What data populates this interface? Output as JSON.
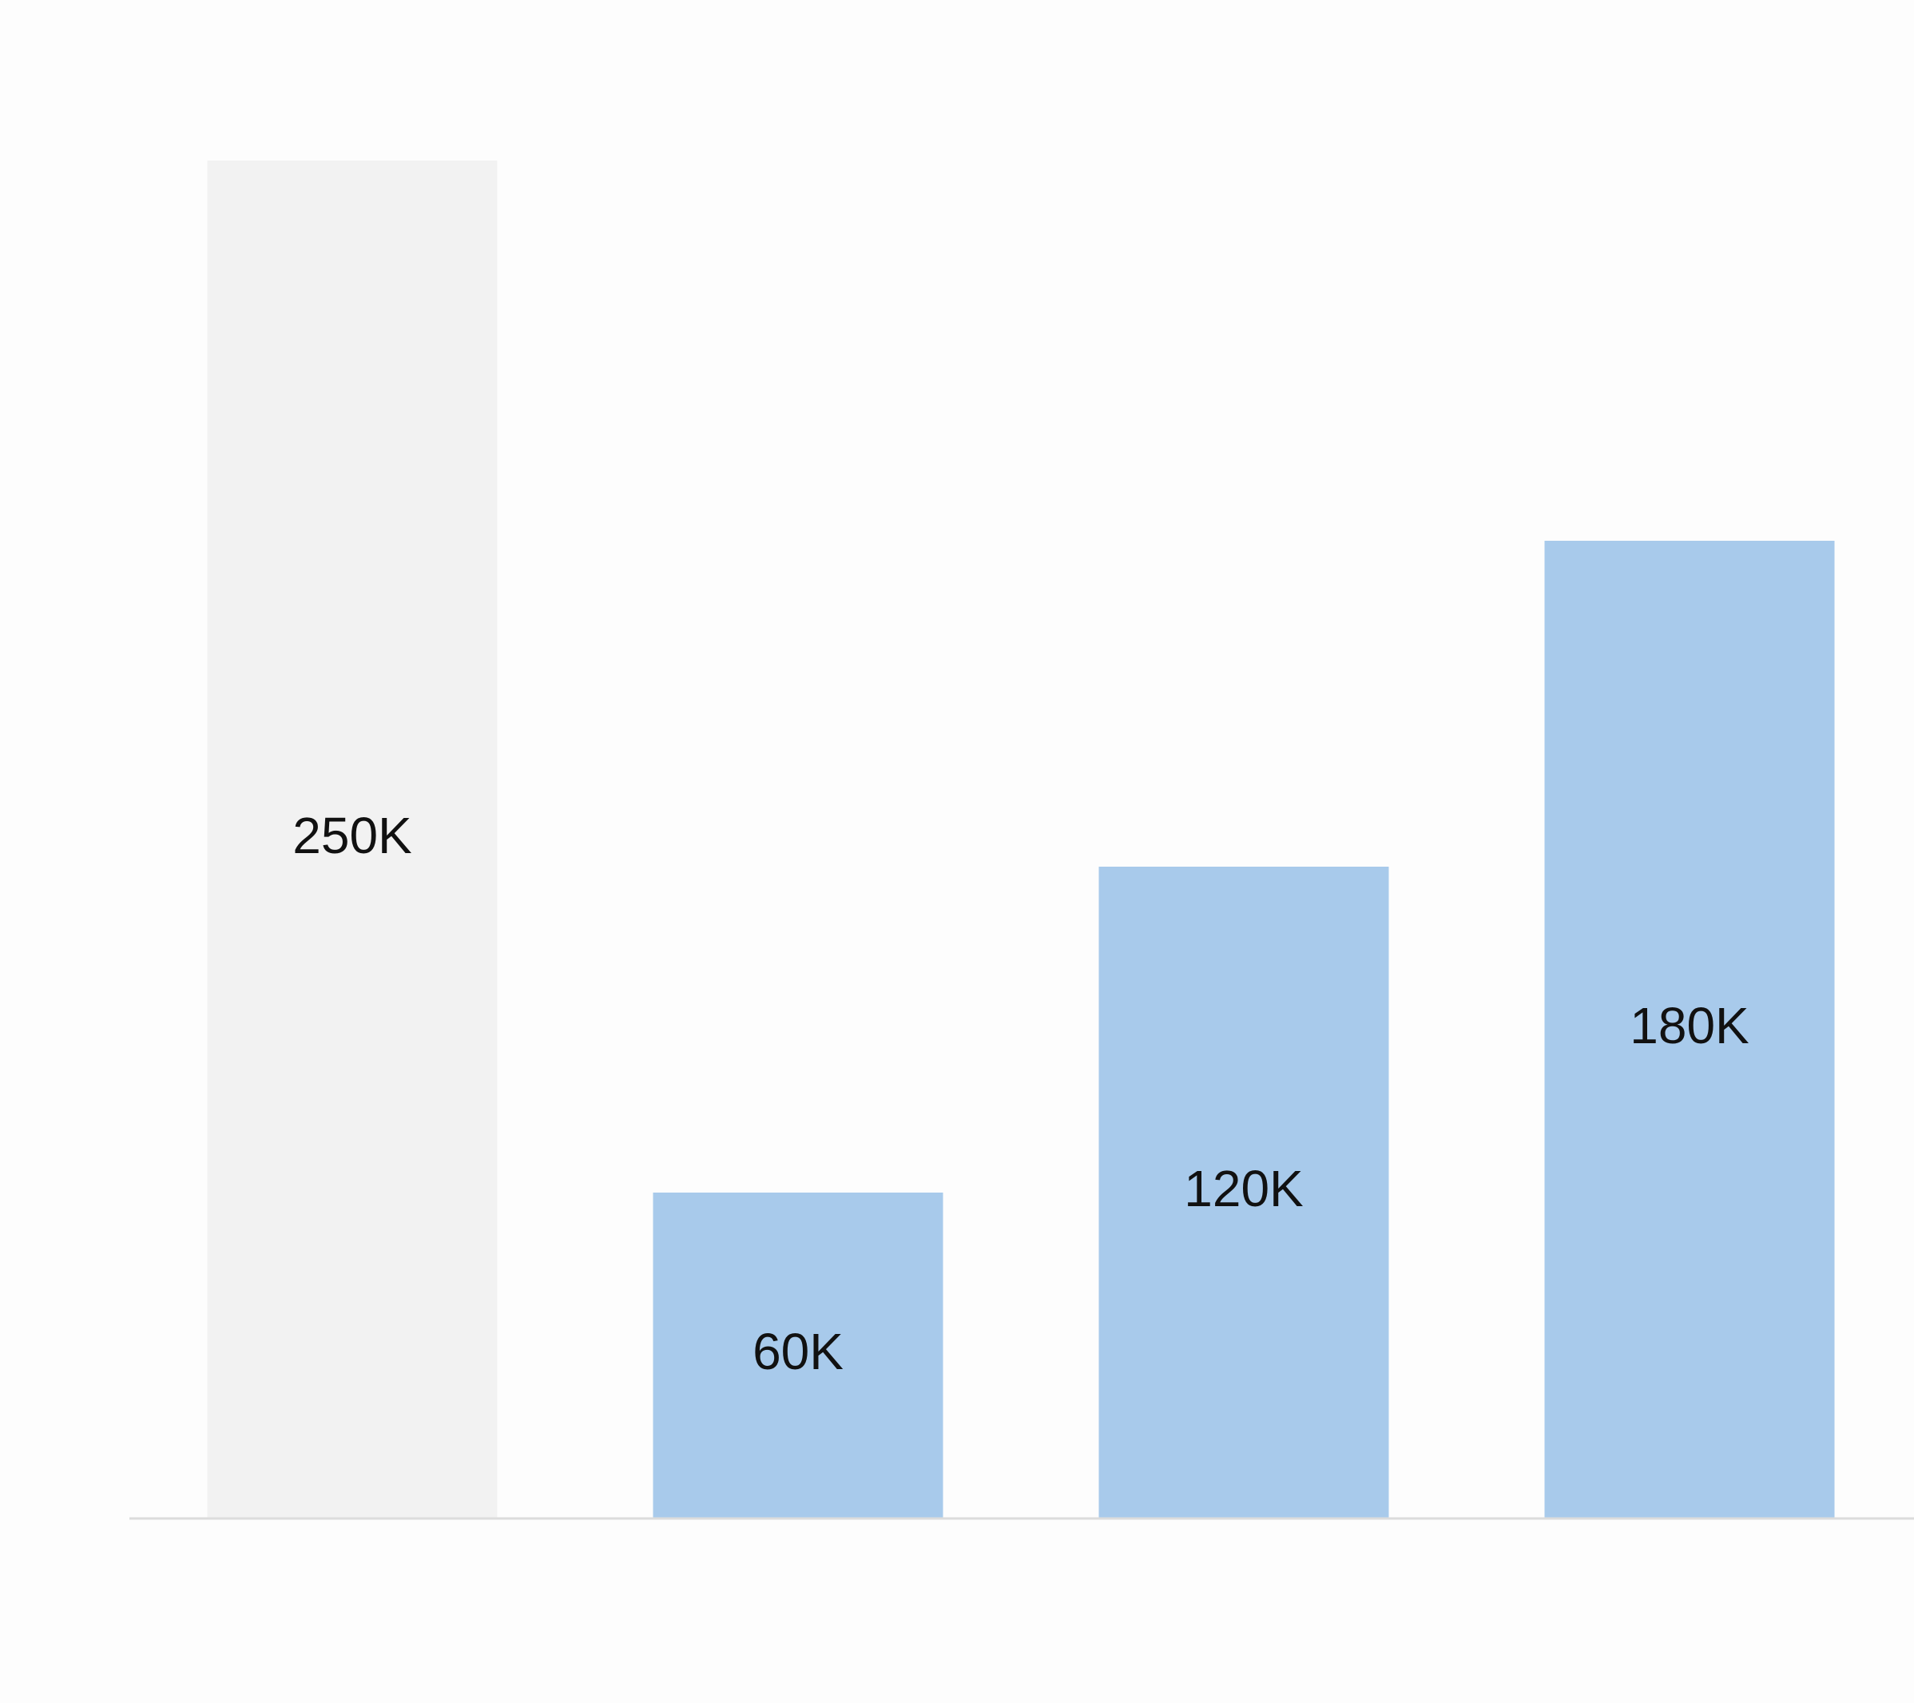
{
  "chart_data": {
    "type": "bar",
    "values": [
      250000,
      60000,
      120000,
      180000
    ],
    "value_labels": [
      "250K",
      "60K",
      "120K",
      "180K"
    ],
    "colors": [
      "#f2f2f2",
      "#a8caeb",
      "#a8caeb",
      "#a8caeb"
    ],
    "ylim": [
      0,
      250000
    ]
  }
}
